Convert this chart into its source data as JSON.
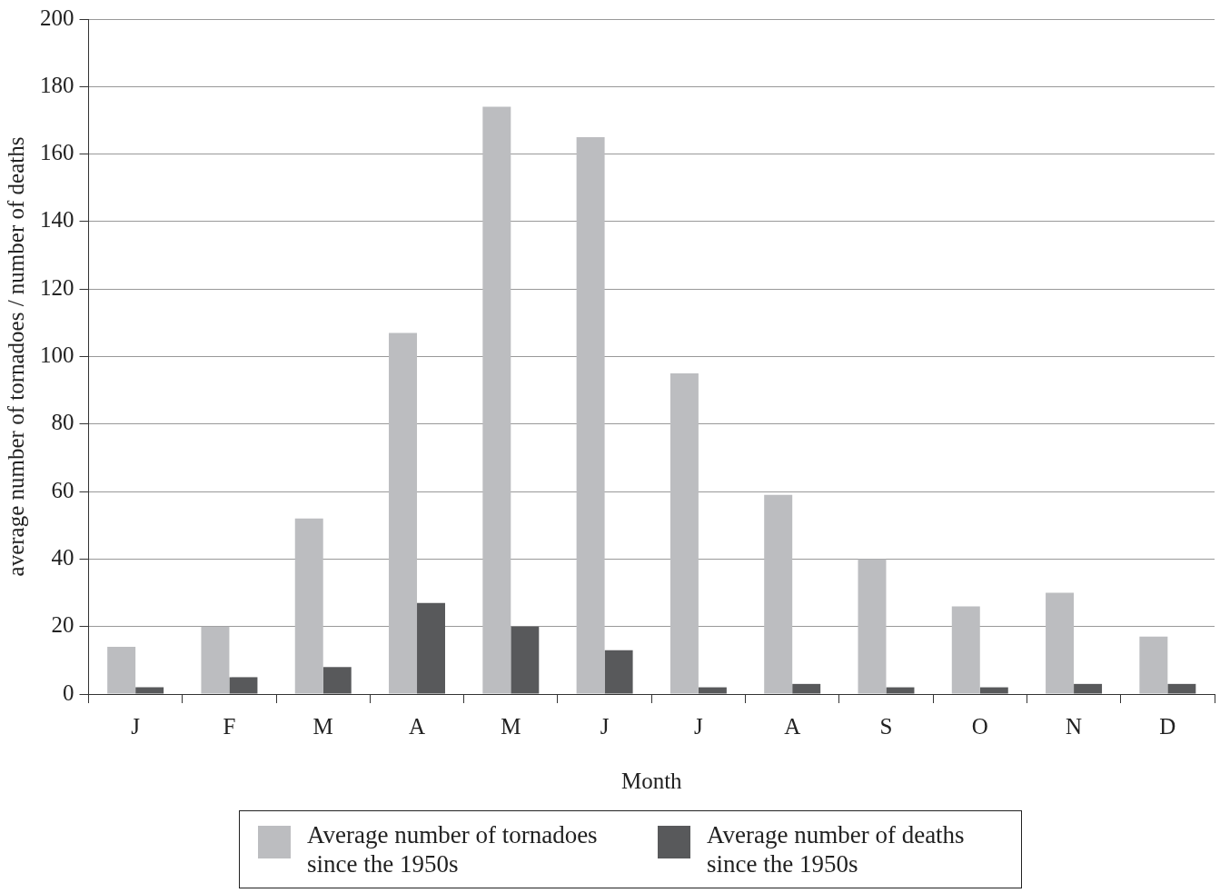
{
  "chart_data": {
    "type": "bar",
    "xlabel": "Month",
    "ylabel": "average number of tornadoes / number of deaths",
    "categories": [
      "J",
      "F",
      "M",
      "A",
      "M",
      "J",
      "J",
      "A",
      "S",
      "O",
      "N",
      "D"
    ],
    "series": [
      {
        "name": "Average number of tornadoes since the 1950s",
        "color": "#bcbdc0",
        "values": [
          14,
          20,
          52,
          107,
          174,
          165,
          95,
          59,
          40,
          26,
          30,
          17
        ]
      },
      {
        "name": "Average number of deaths since the 1950s",
        "color": "#58595b",
        "values": [
          2,
          5,
          8,
          27,
          20,
          13,
          2,
          3,
          2,
          2,
          3,
          3
        ]
      }
    ],
    "ylim": [
      0,
      200
    ],
    "yticks": [
      0,
      20,
      40,
      60,
      80,
      100,
      120,
      140,
      160,
      180,
      200
    ],
    "grid": "y",
    "legend": "bottom"
  }
}
